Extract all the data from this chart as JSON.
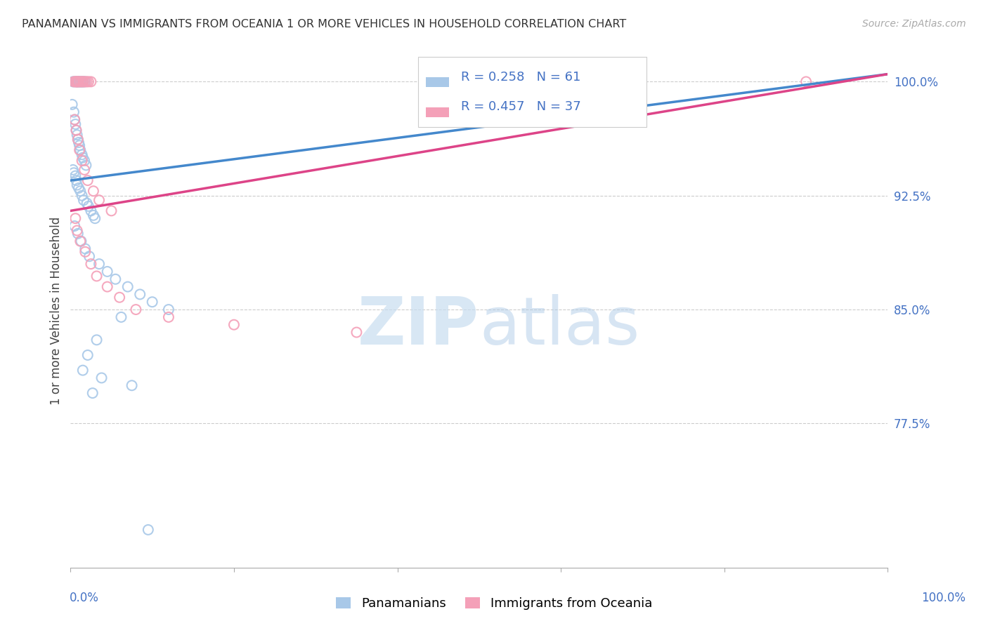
{
  "title": "PANAMANIAN VS IMMIGRANTS FROM OCEANIA 1 OR MORE VEHICLES IN HOUSEHOLD CORRELATION CHART",
  "source": "Source: ZipAtlas.com",
  "ylabel": "1 or more Vehicles in Household",
  "yticks": [
    100.0,
    92.5,
    85.0,
    77.5
  ],
  "ytick_labels": [
    "100.0%",
    "92.5%",
    "85.0%",
    "77.5%"
  ],
  "legend_blue_r": "R = 0.258",
  "legend_blue_n": "N = 61",
  "legend_pink_r": "R = 0.457",
  "legend_pink_n": "N = 37",
  "blue_color": "#a8c8e8",
  "pink_color": "#f4a0b8",
  "blue_line_color": "#4488cc",
  "pink_line_color": "#dd4488",
  "axis_label_color": "#4472c4",
  "watermark_zip": "ZIP",
  "watermark_atlas": "atlas",
  "blue_x": [
    0.3,
    0.5,
    0.7,
    0.8,
    0.9,
    1.0,
    1.1,
    1.2,
    1.3,
    1.4,
    1.5,
    1.6,
    1.8,
    0.2,
    0.4,
    0.5,
    0.6,
    0.7,
    0.8,
    0.9,
    1.0,
    1.1,
    1.2,
    1.4,
    1.5,
    1.7,
    1.9,
    0.3,
    0.4,
    0.6,
    0.7,
    0.8,
    1.0,
    1.2,
    1.4,
    1.6,
    2.0,
    2.2,
    2.5,
    2.8,
    3.0,
    0.5,
    0.9,
    1.3,
    1.8,
    2.3,
    3.5,
    4.5,
    5.5,
    7.0,
    8.5,
    10.0,
    12.0,
    6.2,
    3.2,
    2.1,
    1.5,
    3.8,
    7.5,
    2.7,
    9.5
  ],
  "blue_y": [
    100.0,
    100.0,
    100.0,
    100.0,
    100.0,
    100.0,
    100.0,
    100.0,
    100.0,
    100.0,
    100.0,
    100.0,
    100.0,
    98.5,
    98.0,
    97.5,
    97.2,
    96.8,
    96.5,
    96.2,
    96.0,
    95.8,
    95.5,
    95.2,
    95.0,
    94.8,
    94.5,
    94.2,
    94.0,
    93.8,
    93.5,
    93.2,
    93.0,
    92.8,
    92.5,
    92.2,
    92.0,
    91.8,
    91.5,
    91.2,
    91.0,
    90.5,
    90.0,
    89.5,
    89.0,
    88.5,
    88.0,
    87.5,
    87.0,
    86.5,
    86.0,
    85.5,
    85.0,
    84.5,
    83.0,
    82.0,
    81.0,
    80.5,
    80.0,
    79.5,
    70.5
  ],
  "pink_x": [
    0.4,
    0.6,
    0.7,
    0.8,
    0.9,
    1.0,
    1.2,
    1.3,
    1.5,
    1.6,
    1.8,
    2.0,
    2.2,
    2.5,
    90.0,
    0.5,
    0.7,
    0.9,
    1.1,
    1.4,
    1.7,
    2.1,
    2.8,
    3.5,
    5.0,
    0.6,
    0.8,
    1.2,
    1.8,
    2.5,
    3.2,
    4.5,
    6.0,
    8.0,
    12.0,
    20.0,
    35.0
  ],
  "pink_y": [
    100.0,
    100.0,
    100.0,
    100.0,
    100.0,
    100.0,
    100.0,
    100.0,
    100.0,
    100.0,
    100.0,
    100.0,
    100.0,
    100.0,
    100.0,
    97.5,
    96.8,
    96.2,
    95.5,
    94.8,
    94.2,
    93.5,
    92.8,
    92.2,
    91.5,
    91.0,
    90.2,
    89.5,
    88.8,
    88.0,
    87.2,
    86.5,
    85.8,
    85.0,
    84.5,
    84.0,
    83.5
  ],
  "blue_line_x0": 0.0,
  "blue_line_x1": 100.0,
  "blue_line_y0": 93.5,
  "blue_line_y1": 100.5,
  "pink_line_x0": 0.0,
  "pink_line_x1": 100.0,
  "pink_line_y0": 91.5,
  "pink_line_y1": 100.5,
  "xmin": 0.0,
  "xmax": 100.0,
  "ymin": 68.0,
  "ymax": 101.8,
  "grid_color": "#cccccc",
  "marker_size": 100,
  "marker_linewidth": 1.5
}
